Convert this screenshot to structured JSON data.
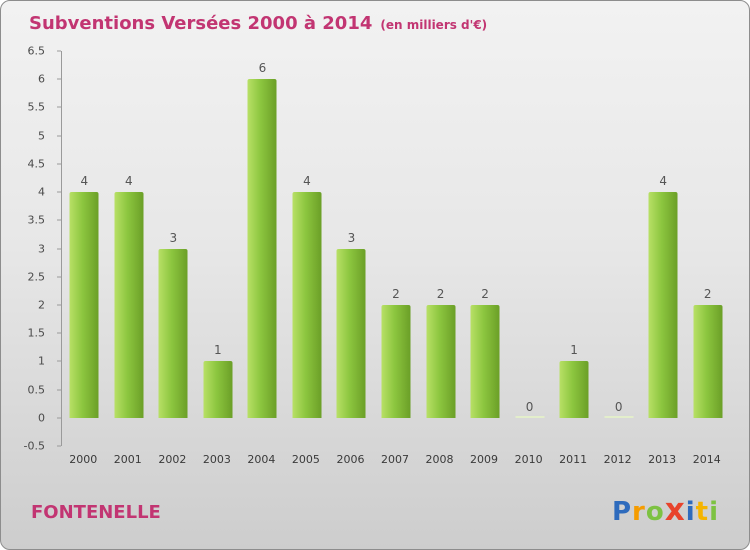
{
  "header": {
    "title": "Subventions Versées 2000 à 2014",
    "subtitle": "(en milliers d'€)"
  },
  "footer": {
    "company": "FONTENELLE"
  },
  "logo": {
    "name": "Proxiti",
    "letters": [
      {
        "ch": "P",
        "color": "#2e6bbd"
      },
      {
        "ch": "r",
        "color": "#f59c00"
      },
      {
        "ch": "o",
        "color": "#7dc242"
      },
      {
        "ch": "x",
        "color": "#e8432c"
      },
      {
        "ch": "i",
        "color": "#2e6bbd"
      },
      {
        "ch": "t",
        "color": "#f5b400"
      },
      {
        "ch": "i",
        "color": "#7dc242"
      }
    ]
  },
  "colors": {
    "accent": "#c23572",
    "bar_light": "#b8e066",
    "bar_mid": "#8cc63f",
    "bar_dark": "#6b9f27",
    "background_top": "#f2f2f2",
    "background_bottom": "#cdcdcd"
  },
  "chart_data": {
    "type": "bar",
    "title": "Subventions Versées 2000 à 2014",
    "subtitle": "(en milliers d'€)",
    "xlabel": "",
    "ylabel": "",
    "categories": [
      "2000",
      "2001",
      "2002",
      "2003",
      "2004",
      "2005",
      "2006",
      "2007",
      "2008",
      "2009",
      "2010",
      "2011",
      "2012",
      "2013",
      "2014"
    ],
    "values": [
      4,
      4,
      3,
      1,
      6,
      4,
      3,
      2,
      2,
      2,
      0,
      1,
      0,
      4,
      2
    ],
    "ylim": [
      -0.5,
      6.5
    ],
    "y_ticks": [
      6.5,
      6,
      5.5,
      5,
      4.5,
      4,
      3.5,
      3,
      2.5,
      2,
      1.5,
      1,
      0.5,
      0,
      -0.5
    ],
    "grid": false,
    "legend": false,
    "bar_value_labels": true
  }
}
